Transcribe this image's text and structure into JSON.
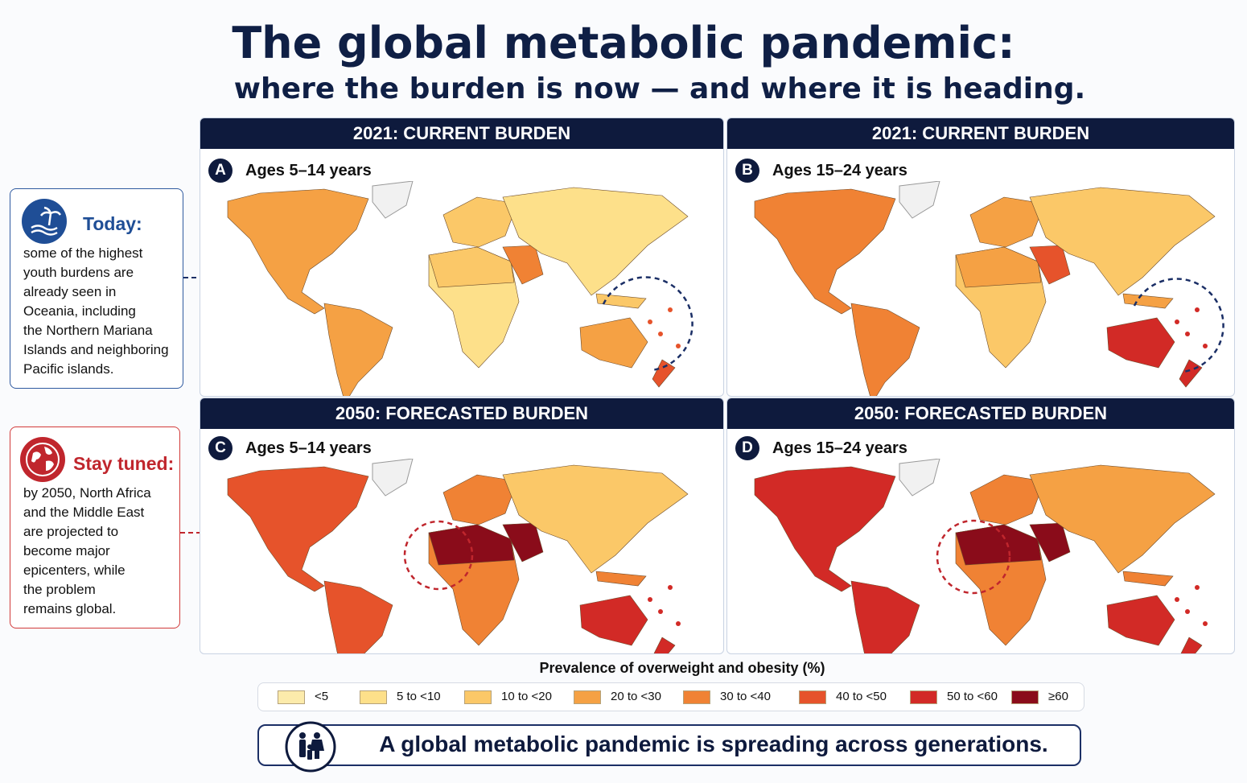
{
  "header": {
    "title": "The global metabolic pandemic:",
    "subtitle": "where the burden is now — and where it is heading."
  },
  "panels": [
    {
      "header": "2021: CURRENT BURDEN",
      "letter": "A",
      "label": "Ages 5–14 years"
    },
    {
      "header": "2021: CURRENT BURDEN",
      "letter": "B",
      "label": "Ages 15–24 years"
    },
    {
      "header": "2050: FORECASTED BURDEN",
      "letter": "C",
      "label": "Ages 5–14 years"
    },
    {
      "header": "2050: FORECASTED BURDEN",
      "letter": "D",
      "label": "Ages 15–24 years"
    }
  ],
  "callouts": [
    {
      "title": "Today:",
      "lines": [
        "some of the highest",
        "youth burdens are",
        "already seen in",
        "Oceania, including",
        "the Northern Mariana",
        "Islands and neighboring",
        "Pacific islands."
      ]
    },
    {
      "title": "Stay tuned:",
      "lines": [
        "by 2050, North Africa",
        "and the Middle East",
        "are projected to",
        "become major",
        "epicenters, while",
        "the problem",
        "remains global."
      ]
    }
  ],
  "legend": {
    "title": "Prevalence of overweight and obesity (%)",
    "items": [
      {
        "label": "<5",
        "color": "#fcebab"
      },
      {
        "label": "5 to <10",
        "color": "#fde08a"
      },
      {
        "label": "10 to <20",
        "color": "#fbc868"
      },
      {
        "label": "20 to <30",
        "color": "#f5a144"
      },
      {
        "label": "30 to <40",
        "color": "#f08234"
      },
      {
        "label": "40 to <50",
        "color": "#e6532b"
      },
      {
        "label": "50 to <60",
        "color": "#d22a26"
      },
      {
        "label": "≥60",
        "color": "#8a0c1a"
      }
    ]
  },
  "footer": {
    "text": "A global metabolic pandemic is spreading across generations."
  }
}
